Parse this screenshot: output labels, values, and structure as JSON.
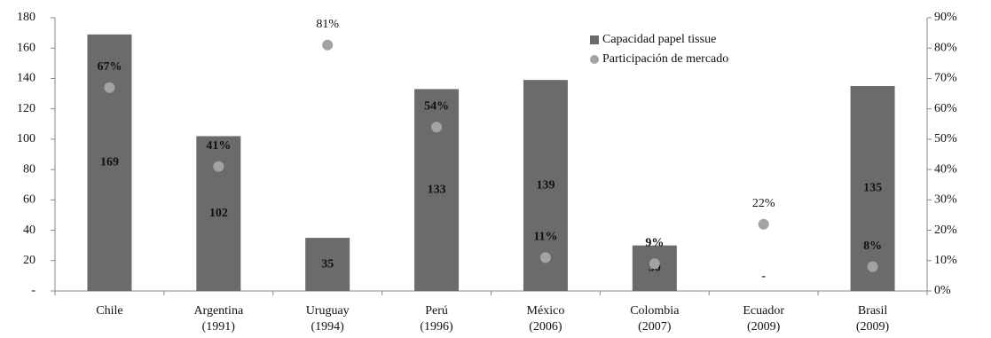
{
  "chart_data": {
    "type": "bar+scatter",
    "categories": [
      "Chile",
      "Argentina",
      "Uruguay",
      "Perú",
      "México",
      "Colombia",
      "Ecuador",
      "Brasil"
    ],
    "category_years": [
      null,
      "(1991)",
      "(1994)",
      "(1996)",
      "(2006)",
      "(2007)",
      "(2009)",
      "(2009)"
    ],
    "series": [
      {
        "name": "Capacidad papel tissue",
        "color": "#6b6b6b",
        "type": "bar",
        "values": [
          169,
          102,
          35,
          133,
          139,
          30,
          0,
          135
        ],
        "value_labels": [
          "169",
          "102",
          "35",
          "133",
          "139",
          "30",
          "-",
          "135"
        ]
      },
      {
        "name": "Participación de mercado",
        "color": "#a3a3a3",
        "type": "scatter",
        "axis": "y2",
        "values": [
          67,
          41,
          81,
          54,
          11,
          9,
          22,
          8
        ],
        "value_labels": [
          "67%",
          "41%",
          "81%",
          "54%",
          "11%",
          "9%",
          "22%",
          "8%"
        ]
      }
    ],
    "ylim": [
      0,
      180
    ],
    "yticks": [
      {
        "value": 0,
        "label": "-"
      },
      20,
      40,
      60,
      80,
      100,
      120,
      140,
      160,
      180
    ],
    "y2lim": [
      0,
      90
    ],
    "y2ticks": [
      {
        "value": 0,
        "label": "0%"
      },
      {
        "value": 10,
        "label": "10%"
      },
      {
        "value": 20,
        "label": "20%"
      },
      {
        "value": 30,
        "label": "30%"
      },
      {
        "value": 40,
        "label": "40%"
      },
      {
        "value": 50,
        "label": "50%"
      },
      {
        "value": 60,
        "label": "60%"
      },
      {
        "value": 70,
        "label": "70%"
      },
      {
        "value": 80,
        "label": "80%"
      },
      {
        "value": 90,
        "label": "90%"
      }
    ],
    "legend": "top"
  }
}
